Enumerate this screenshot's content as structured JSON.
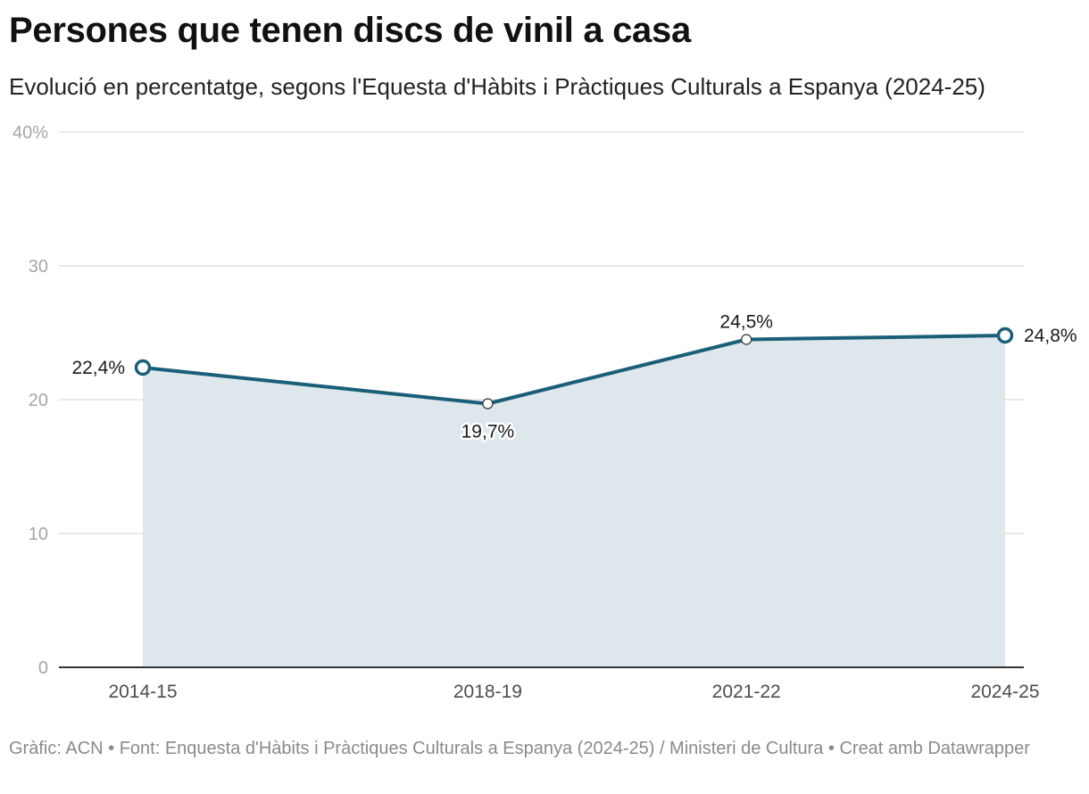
{
  "title": "Persones que tenen discs de vinil a casa",
  "subtitle": "Evolució en percentatge, segons l'Equesta d'Hàbits i Pràctiques Culturals a Espanya (2024-25)",
  "footer": "Gràfic: ACN • Font: Enquesta d'Hàbits i Pràctiques Culturals a Espanya (2024-25) / Ministeri de Cultura • Creat amb Datawrapper",
  "colors": {
    "line": "#1b5e78",
    "area": "#dde7ec",
    "grid": "#e3e3e3",
    "axis": "#333333"
  },
  "chart_data": {
    "type": "area",
    "title": "Persones que tenen discs de vinil a casa",
    "subtitle": "Evolució en percentatge, segons l'Equesta d'Hàbits i Pràctiques Culturals a Espanya (2024-25)",
    "xlabel": "",
    "ylabel": "",
    "categories": [
      "2014-15",
      "2018-19",
      "2021-22",
      "2024-25"
    ],
    "x_years": [
      2014.5,
      2018.5,
      2021.5,
      2024.5
    ],
    "values": [
      22.4,
      19.7,
      24.5,
      24.8
    ],
    "value_labels": [
      "22,4%",
      "19,7%",
      "24,5%",
      "24,8%"
    ],
    "ylim": [
      0,
      40
    ],
    "yticks": [
      0,
      10,
      20,
      30,
      40
    ],
    "ytick_labels": [
      "0",
      "10",
      "20",
      "30",
      "40%"
    ],
    "grid": true,
    "legend": "none"
  }
}
